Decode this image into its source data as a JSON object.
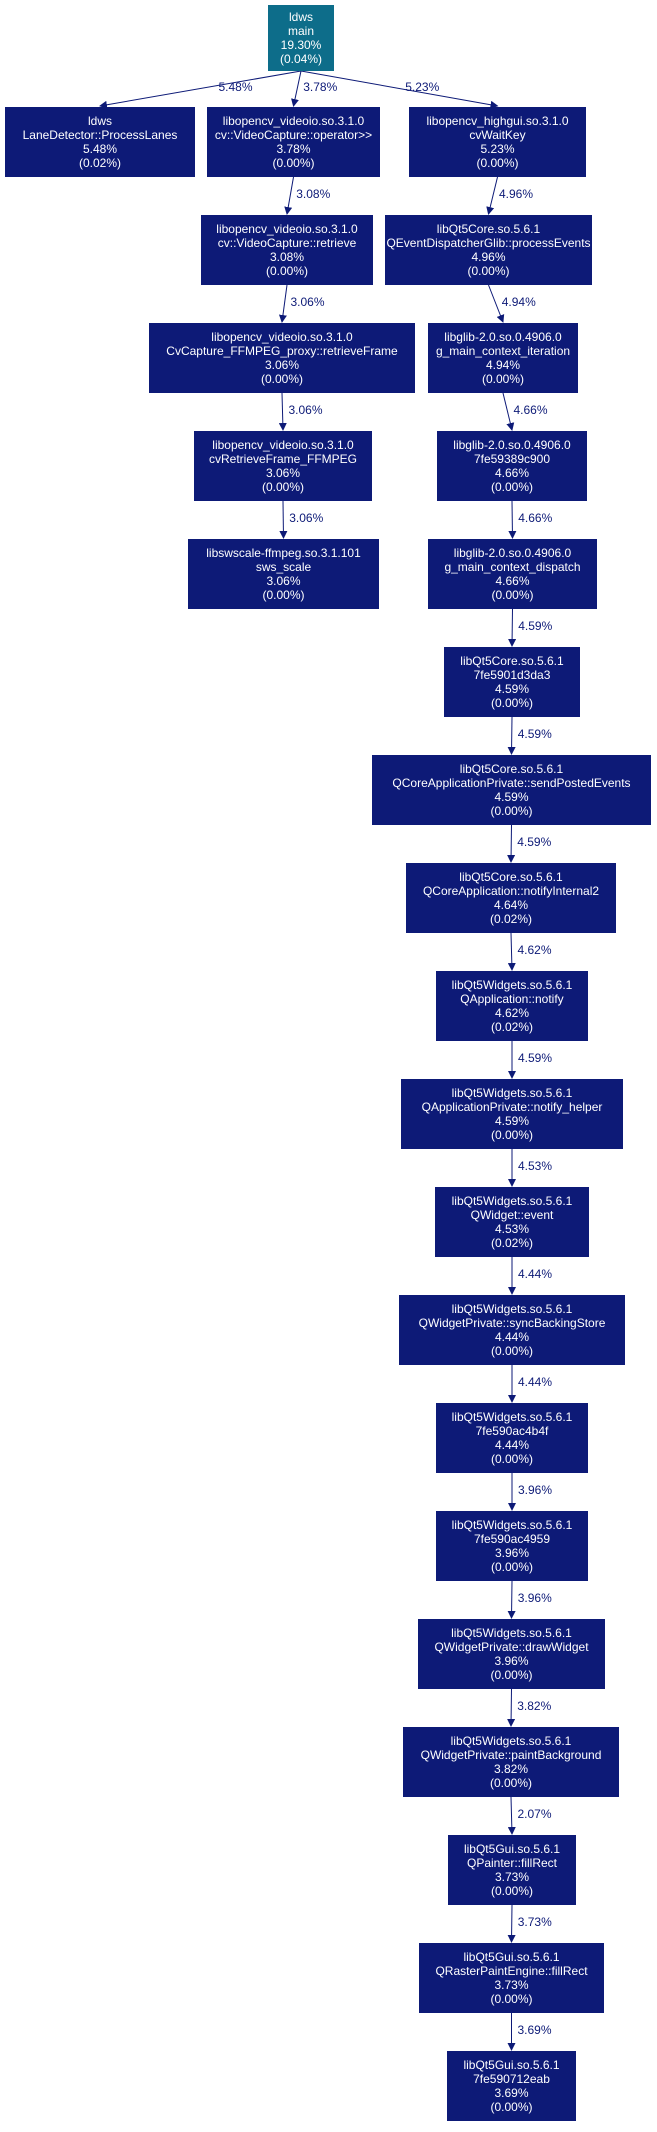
{
  "nodes": [
    {
      "id": "main",
      "lines": [
        "ldws",
        "main",
        "19.30%",
        "(0.04%)"
      ],
      "color": "#0d6d8a"
    },
    {
      "id": "laneDetector",
      "lines": [
        "ldws",
        "LaneDetector::ProcessLanes",
        "5.48%",
        "(0.02%)"
      ],
      "color": "#0d1a77"
    },
    {
      "id": "videoCaptureOp",
      "lines": [
        "libopencv_videoio.so.3.1.0",
        "cv::VideoCapture::operator>>",
        "3.78%",
        "(0.00%)"
      ],
      "color": "#0d1a77"
    },
    {
      "id": "cvWaitKey",
      "lines": [
        "libopencv_highgui.so.3.1.0",
        "cvWaitKey",
        "5.23%",
        "(0.00%)"
      ],
      "color": "#0d1a77"
    },
    {
      "id": "videoCaptureRetrieve",
      "lines": [
        "libopencv_videoio.so.3.1.0",
        "cv::VideoCapture::retrieve",
        "3.08%",
        "(0.00%)"
      ],
      "color": "#0d1a77"
    },
    {
      "id": "qEventDispatcher",
      "lines": [
        "libQt5Core.so.5.6.1",
        "QEventDispatcherGlib::processEvents",
        "4.96%",
        "(0.00%)"
      ],
      "color": "#0d1a77"
    },
    {
      "id": "ffmpegProxy",
      "lines": [
        "libopencv_videoio.so.3.1.0",
        "CvCapture_FFMPEG_proxy::retrieveFrame",
        "3.06%",
        "(0.00%)"
      ],
      "color": "#0d1a77"
    },
    {
      "id": "gMainContextIter",
      "lines": [
        "libglib-2.0.so.0.4906.0",
        "g_main_context_iteration",
        "4.94%",
        "(0.00%)"
      ],
      "color": "#0d1a77"
    },
    {
      "id": "cvRetrieveFrame",
      "lines": [
        "libopencv_videoio.so.3.1.0",
        "cvRetrieveFrame_FFMPEG",
        "3.06%",
        "(0.00%)"
      ],
      "color": "#0d1a77"
    },
    {
      "id": "glib7fe59389c900",
      "lines": [
        "libglib-2.0.so.0.4906.0",
        "7fe59389c900",
        "4.66%",
        "(0.00%)"
      ],
      "color": "#0d1a77"
    },
    {
      "id": "swsScale",
      "lines": [
        "libswscale-ffmpeg.so.3.1.101",
        "sws_scale",
        "3.06%",
        "(0.00%)"
      ],
      "color": "#0d1a77"
    },
    {
      "id": "gMainContextDispatch",
      "lines": [
        "libglib-2.0.so.0.4906.0",
        "g_main_context_dispatch",
        "4.66%",
        "(0.00%)"
      ],
      "color": "#0d1a77"
    },
    {
      "id": "qt5core7fe5901d3da3",
      "lines": [
        "libQt5Core.so.5.6.1",
        "7fe5901d3da3",
        "4.59%",
        "(0.00%)"
      ],
      "color": "#0d1a77"
    },
    {
      "id": "sendPostedEvents",
      "lines": [
        "libQt5Core.so.5.6.1",
        "QCoreApplicationPrivate::sendPostedEvents",
        "4.59%",
        "(0.00%)"
      ],
      "color": "#0d1a77"
    },
    {
      "id": "notifyInternal2",
      "lines": [
        "libQt5Core.so.5.6.1",
        "QCoreApplication::notifyInternal2",
        "4.64%",
        "(0.02%)"
      ],
      "color": "#0d1a77"
    },
    {
      "id": "qappNotify",
      "lines": [
        "libQt5Widgets.so.5.6.1",
        "QApplication::notify",
        "4.62%",
        "(0.02%)"
      ],
      "color": "#0d1a77"
    },
    {
      "id": "notifyHelper",
      "lines": [
        "libQt5Widgets.so.5.6.1",
        "QApplicationPrivate::notify_helper",
        "4.59%",
        "(0.00%)"
      ],
      "color": "#0d1a77"
    },
    {
      "id": "qwidgetEvent",
      "lines": [
        "libQt5Widgets.so.5.6.1",
        "QWidget::event",
        "4.53%",
        "(0.02%)"
      ],
      "color": "#0d1a77"
    },
    {
      "id": "syncBackingStore",
      "lines": [
        "libQt5Widgets.so.5.6.1",
        "QWidgetPrivate::syncBackingStore",
        "4.44%",
        "(0.00%)"
      ],
      "color": "#0d1a77"
    },
    {
      "id": "widgets7fe590ac4b4f",
      "lines": [
        "libQt5Widgets.so.5.6.1",
        "7fe590ac4b4f",
        "4.44%",
        "(0.00%)"
      ],
      "color": "#0d1a77"
    },
    {
      "id": "widgets7fe590ac4959",
      "lines": [
        "libQt5Widgets.so.5.6.1",
        "7fe590ac4959",
        "3.96%",
        "(0.00%)"
      ],
      "color": "#0d1a77"
    },
    {
      "id": "drawWidget",
      "lines": [
        "libQt5Widgets.so.5.6.1",
        "QWidgetPrivate::drawWidget",
        "3.96%",
        "(0.00%)"
      ],
      "color": "#0d1a77"
    },
    {
      "id": "paintBackground",
      "lines": [
        "libQt5Widgets.so.5.6.1",
        "QWidgetPrivate::paintBackground",
        "3.82%",
        "(0.00%)"
      ],
      "color": "#0d1a77"
    },
    {
      "id": "painterFillRect",
      "lines": [
        "libQt5Gui.so.5.6.1",
        "QPainter::fillRect",
        "3.73%",
        "(0.00%)"
      ],
      "color": "#0d1a77"
    },
    {
      "id": "rasterFillRect",
      "lines": [
        "libQt5Gui.so.5.6.1",
        "QRasterPaintEngine::fillRect",
        "3.73%",
        "(0.00%)"
      ],
      "color": "#0d1a77"
    },
    {
      "id": "gui7fe590712eab",
      "lines": [
        "libQt5Gui.so.5.6.1",
        "7fe590712eab",
        "3.69%",
        "(0.00%)"
      ],
      "color": "#0d1a77"
    }
  ],
  "edges": [
    {
      "from": "main",
      "to": "laneDetector",
      "label": "5.48%"
    },
    {
      "from": "main",
      "to": "videoCaptureOp",
      "label": "3.78%"
    },
    {
      "from": "main",
      "to": "cvWaitKey",
      "label": "5.23%"
    },
    {
      "from": "videoCaptureOp",
      "to": "videoCaptureRetrieve",
      "label": "3.08%"
    },
    {
      "from": "cvWaitKey",
      "to": "qEventDispatcher",
      "label": "4.96%"
    },
    {
      "from": "videoCaptureRetrieve",
      "to": "ffmpegProxy",
      "label": "3.06%"
    },
    {
      "from": "qEventDispatcher",
      "to": "gMainContextIter",
      "label": "4.94%"
    },
    {
      "from": "ffmpegProxy",
      "to": "cvRetrieveFrame",
      "label": "3.06%"
    },
    {
      "from": "gMainContextIter",
      "to": "glib7fe59389c900",
      "label": "4.66%"
    },
    {
      "from": "cvRetrieveFrame",
      "to": "swsScale",
      "label": "3.06%"
    },
    {
      "from": "glib7fe59389c900",
      "to": "gMainContextDispatch",
      "label": "4.66%"
    },
    {
      "from": "gMainContextDispatch",
      "to": "qt5core7fe5901d3da3",
      "label": "4.59%"
    },
    {
      "from": "qt5core7fe5901d3da3",
      "to": "sendPostedEvents",
      "label": "4.59%"
    },
    {
      "from": "sendPostedEvents",
      "to": "notifyInternal2",
      "label": "4.59%"
    },
    {
      "from": "notifyInternal2",
      "to": "qappNotify",
      "label": "4.62%"
    },
    {
      "from": "qappNotify",
      "to": "notifyHelper",
      "label": "4.59%"
    },
    {
      "from": "notifyHelper",
      "to": "qwidgetEvent",
      "label": "4.53%"
    },
    {
      "from": "qwidgetEvent",
      "to": "syncBackingStore",
      "label": "4.44%"
    },
    {
      "from": "syncBackingStore",
      "to": "widgets7fe590ac4b4f",
      "label": "4.44%"
    },
    {
      "from": "widgets7fe590ac4b4f",
      "to": "widgets7fe590ac4959",
      "label": "3.96%"
    },
    {
      "from": "widgets7fe590ac4959",
      "to": "drawWidget",
      "label": "3.96%"
    },
    {
      "from": "drawWidget",
      "to": "paintBackground",
      "label": "3.82%"
    },
    {
      "from": "paintBackground",
      "to": "painterFillRect",
      "label": "2.07%"
    },
    {
      "from": "painterFillRect",
      "to": "rasterFillRect",
      "label": "3.73%"
    },
    {
      "from": "rasterFillRect",
      "to": "gui7fe590712eab",
      "label": "3.69%"
    }
  ],
  "edge_color": "#0d1a77"
}
